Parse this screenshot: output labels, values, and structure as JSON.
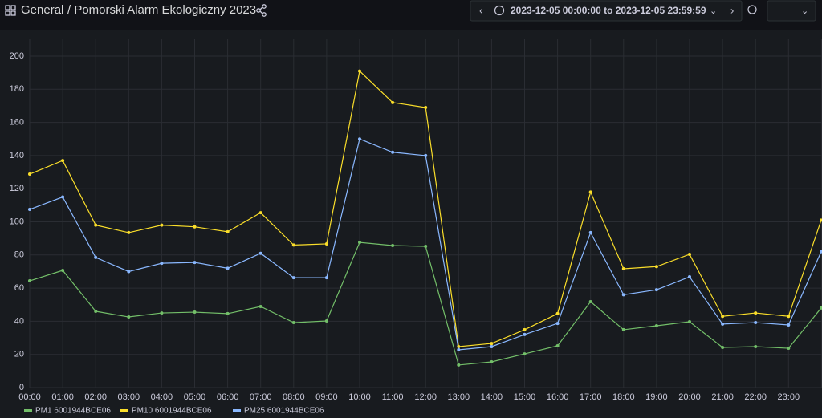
{
  "header": {
    "folder": "General",
    "title": "/ Pomorski Alarm Ekologiczny 2023",
    "time_range": "2023-12-05 00:00:00 to 2023-12-05 23:59:59"
  },
  "chart_data": {
    "type": "line",
    "categories": [
      "00:00",
      "01:00",
      "02:00",
      "03:00",
      "04:00",
      "05:00",
      "06:00",
      "07:00",
      "08:00",
      "09:00",
      "10:00",
      "11:00",
      "12:00",
      "13:00",
      "14:00",
      "15:00",
      "16:00",
      "17:00",
      "18:00",
      "19:00",
      "20:00",
      "21:00",
      "22:00",
      "23:00",
      null
    ],
    "series": [
      {
        "name": "PM1 6001944BCE06",
        "color": "#73bf69",
        "values": [
          64.4,
          70.7,
          46,
          42.6,
          45,
          45.5,
          44.6,
          48.9,
          39.2,
          40.2,
          87.6,
          85.7,
          85.2,
          13.6,
          15.5,
          20.3,
          25.2,
          51.8,
          34.9,
          37.3,
          39.7,
          24.2,
          24.7,
          23.7,
          48
        ]
      },
      {
        "name": "PM10 6001944BCE06",
        "color": "#fade2a",
        "values": [
          128.8,
          137,
          98,
          93.5,
          98,
          97,
          94,
          105.5,
          86,
          86.7,
          191,
          172,
          169,
          24.7,
          26.6,
          34.9,
          44.6,
          118,
          71.7,
          73,
          80.4,
          43,
          45,
          43,
          101
        ]
      },
      {
        "name": "PM25 6001944BCE06",
        "color": "#8ab8ff",
        "values": [
          107.5,
          115,
          78.5,
          70,
          75,
          75.5,
          72,
          81,
          66.3,
          66.3,
          150,
          142,
          140,
          22.8,
          24.7,
          32,
          38.7,
          93.5,
          56,
          59,
          66.8,
          38.3,
          39.2,
          37.8,
          82
        ]
      }
    ],
    "ylim": [
      0,
      200
    ],
    "yticks": [
      0,
      20,
      40,
      60,
      80,
      100,
      120,
      140,
      160,
      180,
      200
    ],
    "grid": true,
    "legend": "bottom"
  }
}
